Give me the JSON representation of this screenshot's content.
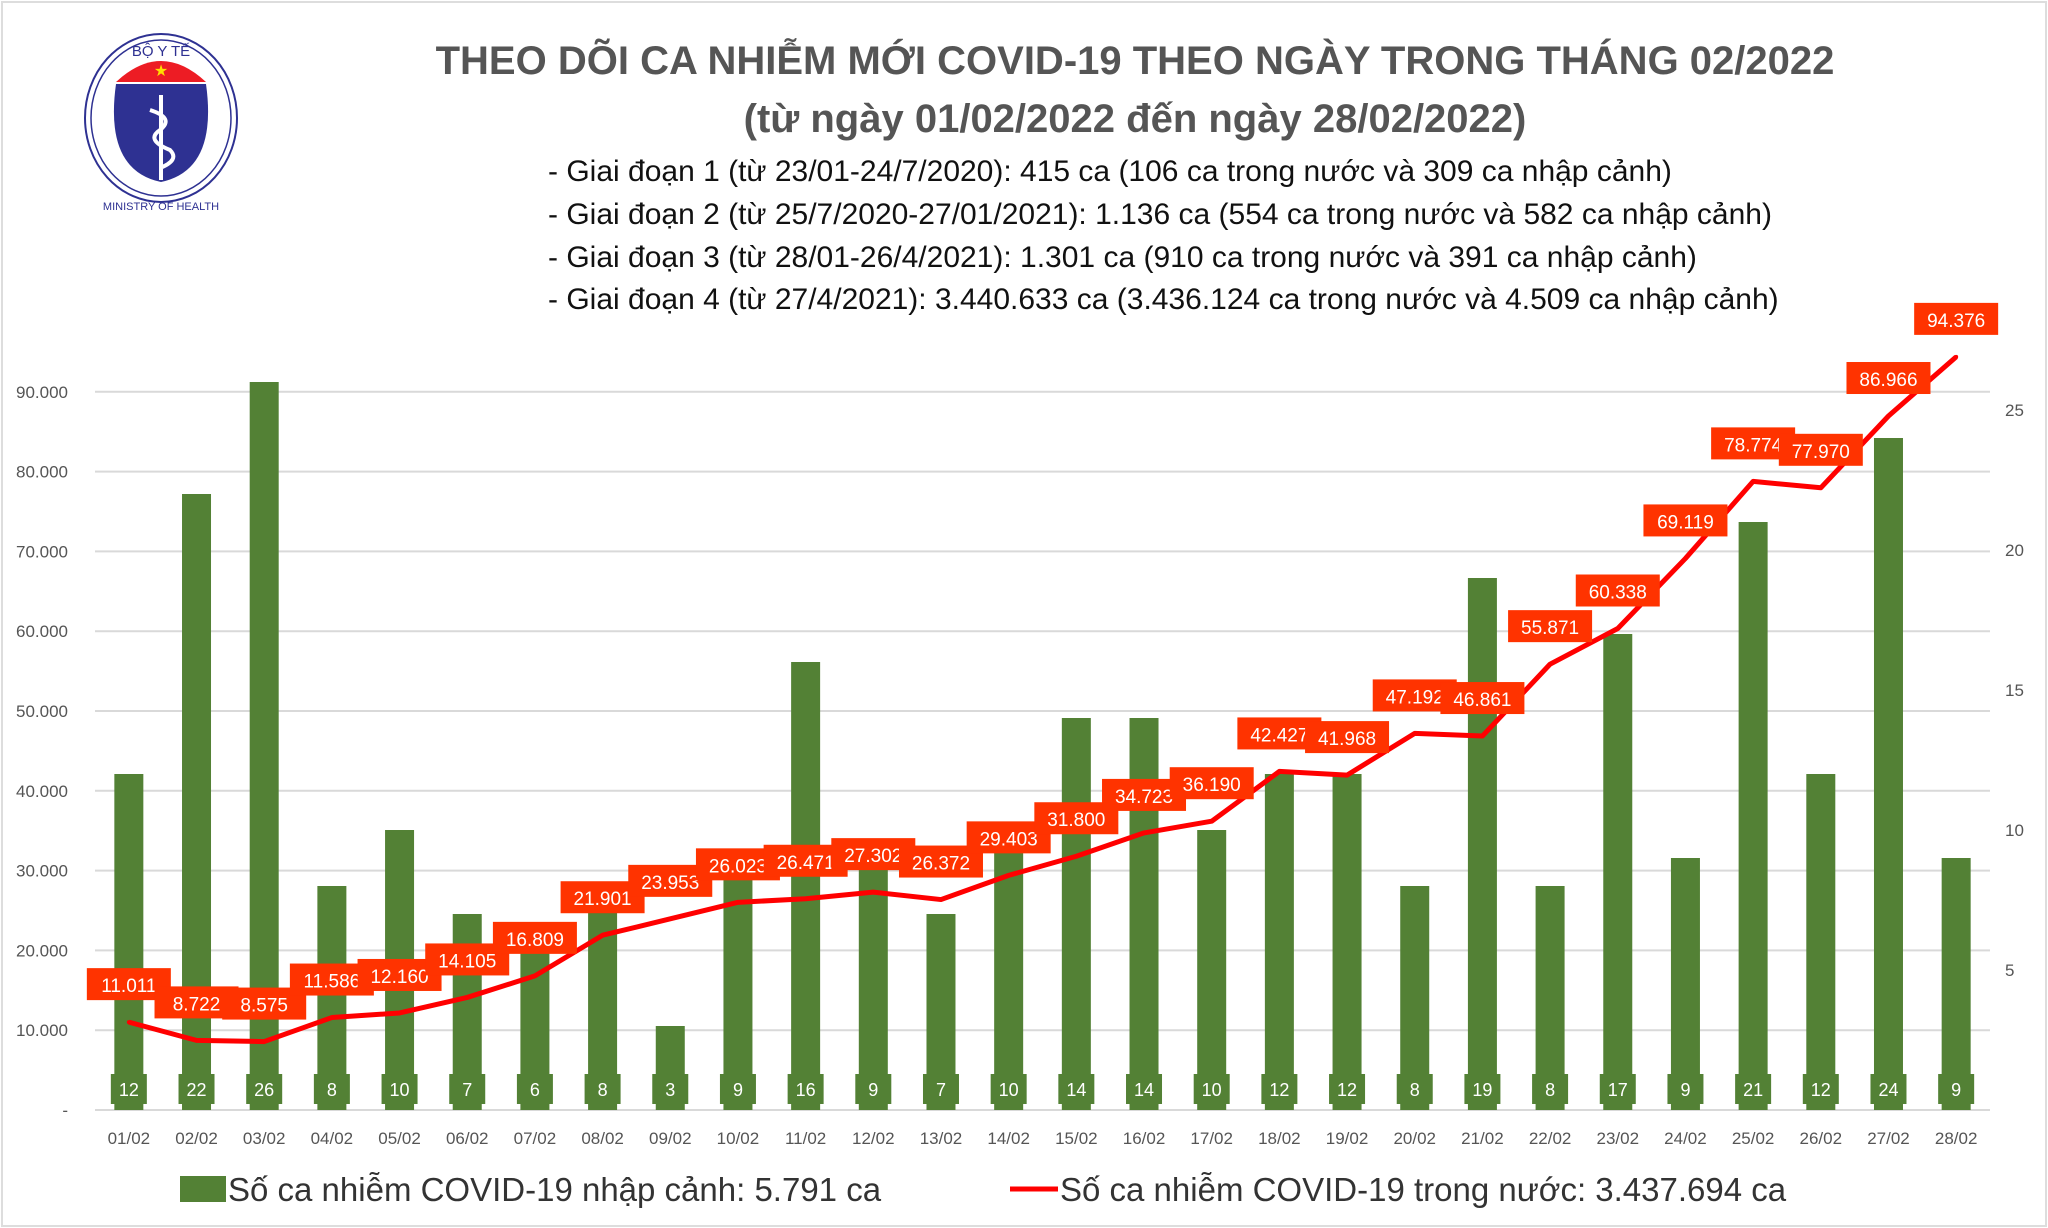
{
  "logo": {
    "top_text": "BỘ Y TẾ",
    "bottom_text": "MINISTRY OF HEALTH"
  },
  "title": "THEO DÕI CA NHIỄM MỚI COVID-19 THEO NGÀY TRONG THÁNG 02/2022",
  "subtitle": "(từ ngày 01/02/2022 đến ngày 28/02/2022)",
  "notes": [
    "- Giai đoạn 1 (từ 23/01-24/7/2020): 415 ca (106 ca trong nước và 309 ca nhập cảnh)",
    "- Giai đoạn 2 (từ 25/7/2020-27/01/2021): 1.136 ca (554 ca trong nước và 582 ca nhập cảnh)",
    "- Giai đoạn 3 (từ 28/01-26/4/2021): 1.301 ca (910 ca trong nước và 391 ca nhập cảnh)",
    "- Giai đoạn 4 (từ 27/4/2021): 3.440.633 ca (3.436.124 ca trong nước và 4.509 ca nhập cảnh)"
  ],
  "chart_data": {
    "type": "bar+line",
    "categories": [
      "01/02",
      "02/02",
      "03/02",
      "04/02",
      "05/02",
      "06/02",
      "07/02",
      "08/02",
      "09/02",
      "10/02",
      "11/02",
      "12/02",
      "13/02",
      "14/02",
      "15/02",
      "16/02",
      "17/02",
      "18/02",
      "19/02",
      "20/02",
      "21/02",
      "22/02",
      "23/02",
      "24/02",
      "25/02",
      "26/02",
      "27/02",
      "28/02"
    ],
    "series": [
      {
        "name": "Số ca nhiễm COVID-19 nhập cảnh: 5.791 ca",
        "type": "bar",
        "axis": "right",
        "color": "#538135",
        "values": [
          12,
          22,
          26,
          8,
          10,
          7,
          6,
          8,
          3,
          9,
          16,
          9,
          7,
          10,
          14,
          14,
          10,
          12,
          12,
          8,
          19,
          8,
          17,
          9,
          21,
          12,
          24,
          9
        ]
      },
      {
        "name": "Số ca nhiễm COVID-19 trong nước: 3.437.694 ca",
        "type": "line",
        "axis": "left",
        "color": "#ff0000",
        "values": [
          11011,
          8722,
          8575,
          11586,
          12160,
          14105,
          16809,
          21901,
          23953,
          26023,
          26471,
          27302,
          26372,
          29403,
          31800,
          34723,
          36190,
          42427,
          41968,
          47192,
          46861,
          55871,
          60338,
          69119,
          78774,
          77970,
          86966,
          94376
        ],
        "labels": [
          "11.011",
          "8.722",
          "8.575",
          "11.586",
          "12.160",
          "14.105",
          "16.809",
          "21.901",
          "23.953",
          "26.023",
          "26.471",
          "27.302",
          "26.372",
          "29.403",
          "31.800",
          "34.723",
          "36.190",
          "42.427",
          "41.968",
          "47.192",
          "46.861",
          "55.871",
          "60.338",
          "69.119",
          "78.774",
          "77.970",
          "86.966",
          "94.376"
        ]
      }
    ],
    "left_ticks": [
      "-",
      "10.000",
      "20.000",
      "30.000",
      "40.000",
      "50.000",
      "60.000",
      "70.000",
      "80.000",
      "90.000"
    ],
    "left_tick_values": [
      0,
      10000,
      20000,
      30000,
      40000,
      50000,
      60000,
      70000,
      80000,
      90000
    ],
    "right_ticks": [
      "5",
      "10",
      "15",
      "20",
      "25"
    ],
    "right_tick_values": [
      5,
      10,
      15,
      20,
      25
    ],
    "ylim": [
      0,
      100000
    ],
    "y2lim": [
      0,
      28.5
    ],
    "grid": true,
    "legend_placement": "bottom",
    "label_box_color": "#ff3300"
  }
}
